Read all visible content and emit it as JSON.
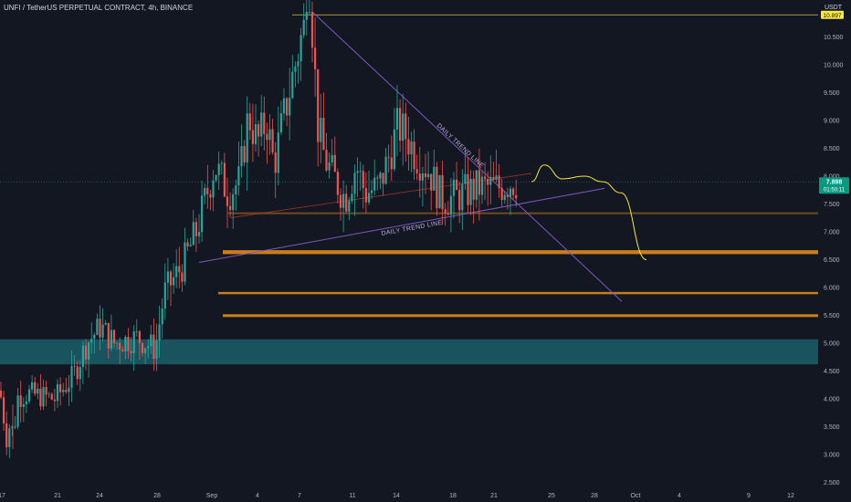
{
  "header": {
    "title": "UNFI / TetherUS PERPETUAL CONTRACT, 4h, BINANCE",
    "currency": "USDT"
  },
  "price_badge": {
    "price": "7.898",
    "countdown": "01:50:11"
  },
  "top_badge": {
    "price": "10.897"
  },
  "colors": {
    "background": "#131722",
    "up": "#26a69a",
    "down": "#ef5350",
    "orange_zone": "#e08a16",
    "teal_zone": "#1b5e68",
    "trend_line": "#7e57c2",
    "projection": "#f5e642",
    "badge_green": "#089981",
    "badge_yellow": "#f5e642"
  },
  "chart_data": {
    "type": "candlestick",
    "interval": "4h",
    "y_ticks": [
      "2.500",
      "3.000",
      "3.500",
      "4.000",
      "4.500",
      "5.000",
      "5.500",
      "6.000",
      "6.500",
      "7.000",
      "7.500",
      "8.000",
      "8.500",
      "9.000",
      "9.500",
      "10.000",
      "10.500"
    ],
    "x_ticks": [
      "17",
      "21",
      "24",
      "28",
      "Sep",
      "4",
      "7",
      "11",
      "14",
      "18",
      "21",
      "25",
      "28",
      "Oct",
      "4",
      "9",
      "12"
    ],
    "ylim": [
      2.4,
      11.2
    ],
    "key_points": [
      {
        "label": "start",
        "close": 4.0
      },
      {
        "label": "low",
        "value": 3.1
      },
      {
        "label": "peak",
        "value": 10.95
      },
      {
        "label": "last",
        "close": 7.898
      }
    ],
    "zones": [
      {
        "name": "resistance",
        "low": 7.32,
        "high": 7.35
      },
      {
        "name": "support-1",
        "low": 6.6,
        "high": 6.67
      },
      {
        "name": "support-2",
        "low": 5.88,
        "high": 5.92
      },
      {
        "name": "support-3",
        "low": 5.47,
        "high": 5.52
      },
      {
        "name": "demand",
        "low": 4.62,
        "high": 5.07
      }
    ],
    "trend_lines": [
      {
        "label": "DAILY TREND LINE",
        "from": 10.95,
        "to": 5.75,
        "direction": "descending"
      },
      {
        "label": "DAILY TREND LINE",
        "from": 6.45,
        "to": 7.78,
        "direction": "ascending"
      }
    ],
    "horizontal_level": 10.897,
    "projection_path": [
      7.9,
      8.2,
      7.95,
      8.0,
      7.9,
      7.7,
      6.5
    ]
  }
}
